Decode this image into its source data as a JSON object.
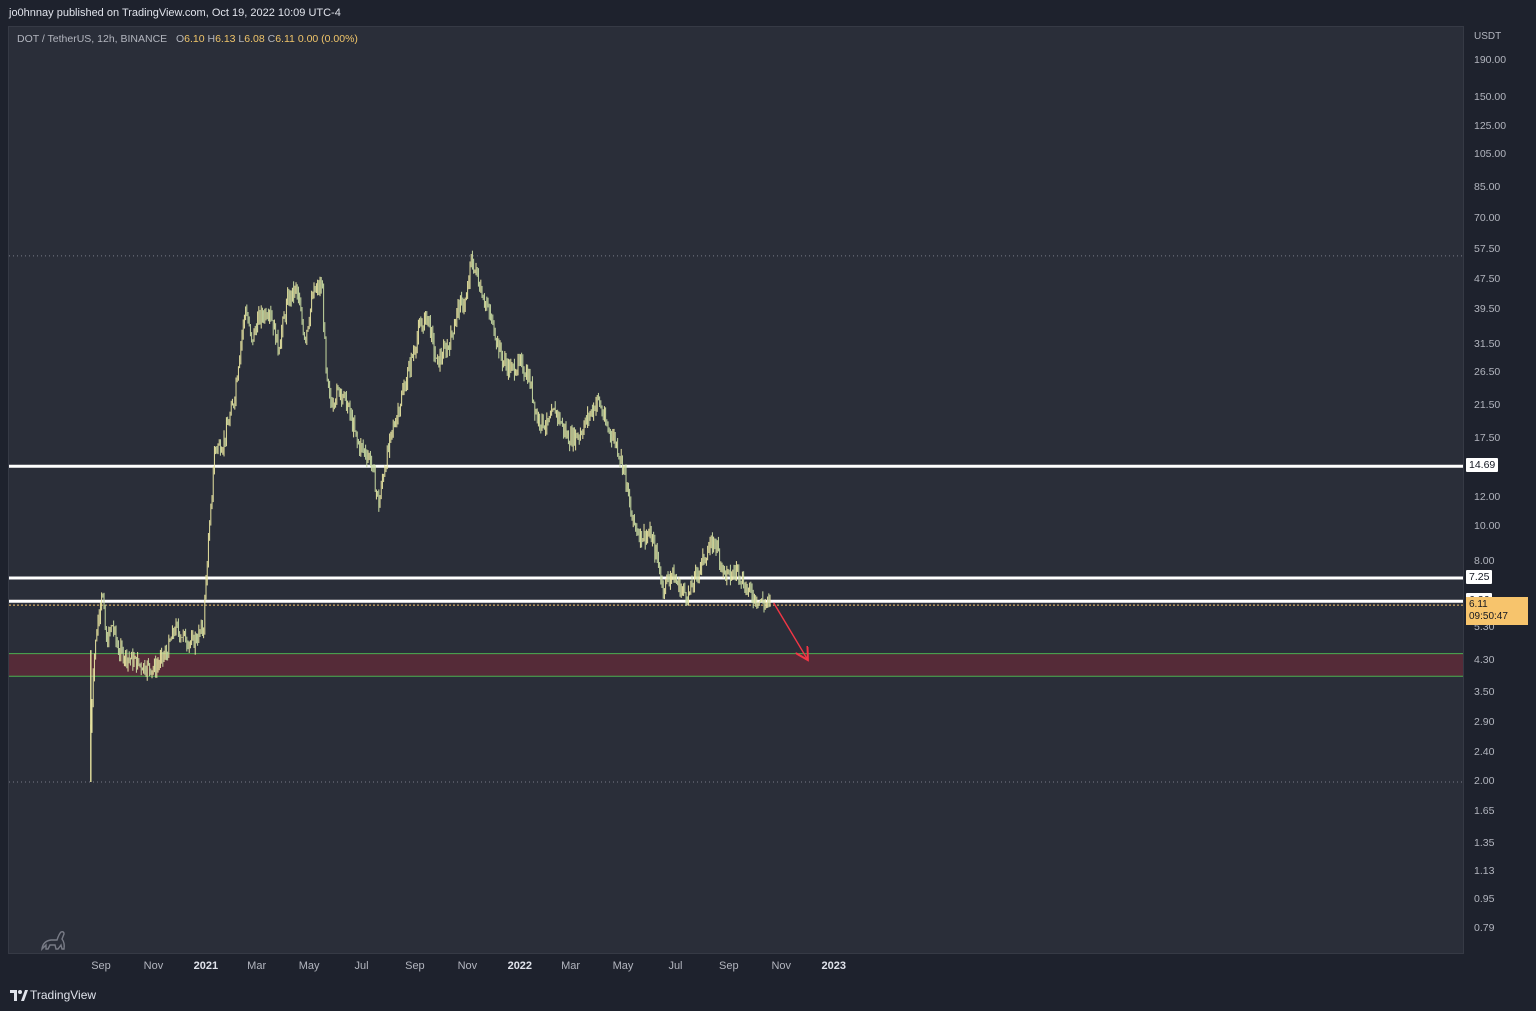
{
  "header": {
    "publisher": "jo0hnnay published on TradingView.com, Oct 19, 2022 10:09 UTC-4"
  },
  "legend": {
    "symbol": "DOT / TetherUS, 12h, BINANCE",
    "open_label": "O",
    "open": "6.10",
    "high_label": "H",
    "high": "6.13",
    "low_label": "L",
    "low": "6.08",
    "close_label": "C",
    "close": "6.11",
    "change": "0.00 (0.00%)"
  },
  "price_axis": {
    "unit": "USDT",
    "scale": "log",
    "ticks": [
      "190.00",
      "150.00",
      "125.00",
      "105.00",
      "85.00",
      "70.00",
      "57.50",
      "47.50",
      "39.50",
      "31.50",
      "26.50",
      "21.50",
      "17.50",
      "12.00",
      "10.00",
      "8.00",
      "5.30",
      "4.30",
      "3.50",
      "2.90",
      "2.40",
      "2.00",
      "1.65",
      "1.35",
      "1.13",
      "0.95",
      "0.79"
    ],
    "labels": {
      "level_high": "14.69",
      "level_mid": "7.25",
      "level_low": "6.26"
    },
    "current_price": "6.11",
    "countdown": "09:50:47"
  },
  "time_axis": {
    "ticks": [
      {
        "label": "Sep",
        "year": false
      },
      {
        "label": "Nov",
        "year": false
      },
      {
        "label": "2021",
        "year": true
      },
      {
        "label": "Mar",
        "year": false
      },
      {
        "label": "May",
        "year": false
      },
      {
        "label": "Jul",
        "year": false
      },
      {
        "label": "Sep",
        "year": false
      },
      {
        "label": "Nov",
        "year": false
      },
      {
        "label": "2022",
        "year": true
      },
      {
        "label": "Mar",
        "year": false
      },
      {
        "label": "May",
        "year": false
      },
      {
        "label": "Jul",
        "year": false
      },
      {
        "label": "Sep",
        "year": false
      },
      {
        "label": "Nov",
        "year": false
      },
      {
        "label": "2023",
        "year": true
      }
    ]
  },
  "chart_data": {
    "type": "line",
    "title": "DOT / TetherUS, 12h, BINANCE",
    "xlabel": "",
    "ylabel": "USDT",
    "y_scale": "log",
    "series": [
      {
        "values": [
          [
            "2020-08-19",
            2.8
          ],
          [
            "2020-08-22",
            4.2
          ],
          [
            "2020-08-27",
            5.5
          ],
          [
            "2020-09-01",
            6.8
          ],
          [
            "2020-09-06",
            4.8
          ],
          [
            "2020-09-13",
            5.4
          ],
          [
            "2020-09-20",
            4.6
          ],
          [
            "2020-10-01",
            4.4
          ],
          [
            "2020-10-15",
            4.2
          ],
          [
            "2020-11-01",
            4.1
          ],
          [
            "2020-11-15",
            4.5
          ],
          [
            "2020-11-25",
            5.3
          ],
          [
            "2020-12-05",
            5.0
          ],
          [
            "2020-12-15",
            4.8
          ],
          [
            "2020-12-28",
            5.3
          ],
          [
            "2021-01-01",
            8.0
          ],
          [
            "2021-01-05",
            10.5
          ],
          [
            "2021-01-10",
            16.5
          ],
          [
            "2021-01-20",
            17.0
          ],
          [
            "2021-02-01",
            22.0
          ],
          [
            "2021-02-10",
            33.0
          ],
          [
            "2021-02-15",
            40.0
          ],
          [
            "2021-02-22",
            32.0
          ],
          [
            "2021-03-01",
            37.0
          ],
          [
            "2021-03-15",
            40.0
          ],
          [
            "2021-03-25",
            31.0
          ],
          [
            "2021-04-05",
            42.0
          ],
          [
            "2021-04-15",
            45.0
          ],
          [
            "2021-04-25",
            33.0
          ],
          [
            "2021-05-05",
            44.0
          ],
          [
            "2021-05-15",
            46.0
          ],
          [
            "2021-05-20",
            25.0
          ],
          [
            "2021-05-25",
            22.0
          ],
          [
            "2021-06-05",
            24.0
          ],
          [
            "2021-06-15",
            21.0
          ],
          [
            "2021-06-25",
            17.0
          ],
          [
            "2021-07-10",
            15.5
          ],
          [
            "2021-07-20",
            11.5
          ],
          [
            "2021-07-25",
            14.0
          ],
          [
            "2021-08-05",
            18.5
          ],
          [
            "2021-08-20",
            25.0
          ],
          [
            "2021-09-05",
            35.0
          ],
          [
            "2021-09-15",
            38.0
          ],
          [
            "2021-09-25",
            28.0
          ],
          [
            "2021-10-10",
            32.0
          ],
          [
            "2021-10-20",
            40.0
          ],
          [
            "2021-10-30",
            42.0
          ],
          [
            "2021-11-04",
            54.0
          ],
          [
            "2021-11-10",
            50.0
          ],
          [
            "2021-11-20",
            42.0
          ],
          [
            "2021-12-01",
            35.0
          ],
          [
            "2021-12-10",
            29.0
          ],
          [
            "2021-12-20",
            27.0
          ],
          [
            "2022-01-01",
            28.0
          ],
          [
            "2022-01-10",
            26.0
          ],
          [
            "2022-01-20",
            20.0
          ],
          [
            "2022-02-01",
            19.0
          ],
          [
            "2022-02-10",
            21.0
          ],
          [
            "2022-02-25",
            17.5
          ],
          [
            "2022-03-10",
            18.0
          ],
          [
            "2022-03-25",
            21.0
          ],
          [
            "2022-04-01",
            22.5
          ],
          [
            "2022-04-10",
            19.0
          ],
          [
            "2022-04-20",
            17.5
          ],
          [
            "2022-05-01",
            14.5
          ],
          [
            "2022-05-10",
            10.5
          ],
          [
            "2022-05-20",
            9.5
          ],
          [
            "2022-06-01",
            9.5
          ],
          [
            "2022-06-10",
            8.0
          ],
          [
            "2022-06-15",
            6.8
          ],
          [
            "2022-06-25",
            7.5
          ],
          [
            "2022-07-05",
            6.8
          ],
          [
            "2022-07-15",
            6.5
          ],
          [
            "2022-07-25",
            7.5
          ],
          [
            "2022-08-05",
            8.5
          ],
          [
            "2022-08-15",
            9.2
          ],
          [
            "2022-08-25",
            7.5
          ],
          [
            "2022-09-01",
            7.3
          ],
          [
            "2022-09-10",
            7.7
          ],
          [
            "2022-09-20",
            6.8
          ],
          [
            "2022-10-01",
            6.4
          ],
          [
            "2022-10-10",
            6.2
          ],
          [
            "2022-10-19",
            6.11
          ]
        ]
      }
    ],
    "horizontal_levels": [
      55.5,
      14.69,
      7.25,
      6.26,
      2.0
    ],
    "support_zone": [
      3.9,
      4.5
    ],
    "projection_arrow": {
      "from": [
        "2022-10-22",
        6.2
      ],
      "to": [
        "2022-11-30",
        4.35
      ]
    },
    "grid": false
  }
}
